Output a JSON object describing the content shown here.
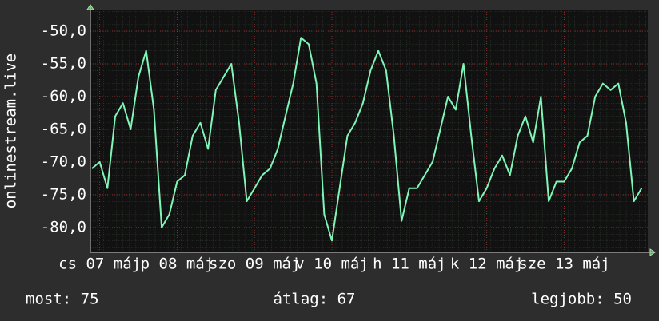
{
  "chart_data": {
    "type": "line",
    "y_label": "onlinestream.live",
    "x": [
      0.4,
      0.5,
      0.6,
      0.7,
      0.8,
      0.9,
      1.0,
      1.1,
      1.2,
      1.3,
      1.4,
      1.5,
      1.6,
      1.7,
      1.8,
      1.9,
      2.0,
      2.1,
      2.2,
      2.3,
      2.4,
      2.5,
      2.6,
      2.7,
      2.8,
      2.9,
      3.0,
      3.1,
      3.2,
      3.3,
      3.4,
      3.5,
      3.6,
      3.7,
      3.8,
      3.9,
      4.0,
      4.1,
      4.2,
      4.3,
      4.4,
      4.5,
      4.6,
      4.7,
      4.8,
      4.9,
      5.0,
      5.1,
      5.2,
      5.3,
      5.4,
      5.5,
      5.6,
      5.7,
      5.8,
      5.9,
      6.0,
      6.1,
      6.2,
      6.3,
      6.4,
      6.5,
      6.6,
      6.7,
      6.8,
      6.9,
      7.0,
      7.1,
      7.2,
      7.3,
      7.4,
      7.5
    ],
    "series": [
      {
        "color": "#80f5b8",
        "values": [
          -71,
          -70,
          -74,
          -63,
          -61,
          -65,
          -57,
          -53,
          -62,
          -80,
          -78,
          -73,
          -72,
          -66,
          -64,
          -68,
          -59,
          -57,
          -55,
          -64,
          -76,
          -74,
          -72,
          -71,
          -68,
          -63,
          -58,
          -51,
          -52,
          -58,
          -78,
          -82,
          -74,
          -66,
          -64,
          -61,
          -56,
          -53,
          -56,
          -66,
          -79,
          -74,
          -74,
          -72,
          -70,
          -65,
          -60,
          -62,
          -55,
          -66,
          -76,
          -74,
          -71,
          -69,
          -72,
          -66,
          -63,
          -67,
          -60,
          -76,
          -73,
          -73,
          -71,
          -67,
          -66,
          -60,
          -58,
          -59,
          -58,
          -64,
          -76,
          -74
        ]
      }
    ],
    "xlim": [
      0.38,
      7.58
    ],
    "xticks": [
      {
        "value": 0.5,
        "label": "cs 07 máj"
      },
      {
        "value": 1.5,
        "label": "p 08 máj"
      },
      {
        "value": 2.5,
        "label": "szo 09 máj"
      },
      {
        "value": 3.5,
        "label": "v 10 máj"
      },
      {
        "value": 4.5,
        "label": "h 11 máj"
      },
      {
        "value": 5.5,
        "label": "k 12 máj"
      },
      {
        "value": 6.5,
        "label": "sze 13 máj"
      }
    ],
    "ylim": [
      -83.8,
      -46.7
    ],
    "yticks": [
      {
        "value": -50,
        "label": "-50,0"
      },
      {
        "value": -55,
        "label": "-55,0"
      },
      {
        "value": -60,
        "label": "-60,0"
      },
      {
        "value": -65,
        "label": "-65,0"
      },
      {
        "value": -70,
        "label": "-70,0"
      },
      {
        "value": -75,
        "label": "-75,0"
      },
      {
        "value": -80,
        "label": "-80,0"
      }
    ],
    "grid": true,
    "footer": [
      "most: 75",
      "átlag: 67",
      "legjobb: 50"
    ]
  }
}
